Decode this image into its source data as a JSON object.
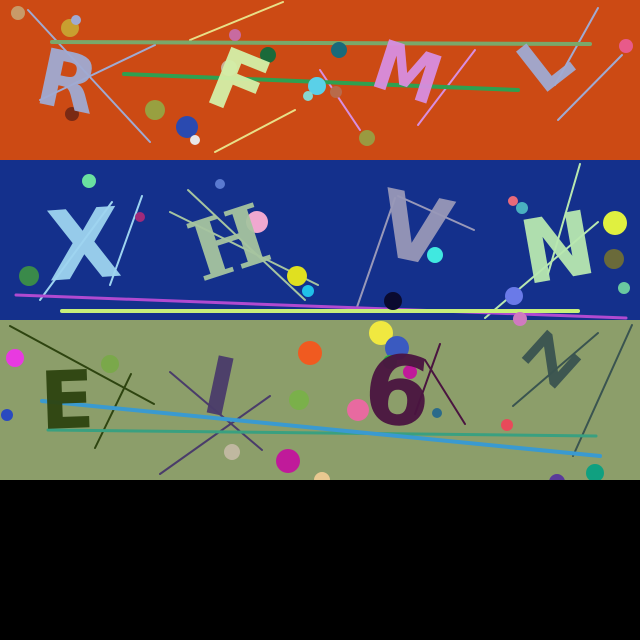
{
  "bands": [
    {
      "name": "top-band",
      "color": "#cc4a14"
    },
    {
      "name": "middle-band",
      "color": "#14308c"
    },
    {
      "name": "bottom-band",
      "color": "#8c9e6a"
    }
  ],
  "background": "#000000",
  "captcha_characters": [
    {
      "text": "R",
      "color": "#a0aad2"
    },
    {
      "text": "F",
      "color": "#d4f0a8"
    },
    {
      "text": "M",
      "color": "#d88ee0"
    },
    {
      "text": "L",
      "color": "#a0aad2"
    },
    {
      "text": "X",
      "color": "#9ed4f0"
    },
    {
      "text": "H",
      "color": "#a6c4a0"
    },
    {
      "text": "V",
      "color": "#9898b8"
    },
    {
      "text": "N",
      "color": "#b8e8b0"
    },
    {
      "text": "E",
      "color": "#2e4410"
    },
    {
      "text": "I",
      "color": "#4a3c6a"
    },
    {
      "text": "6",
      "color": "#4a1440"
    },
    {
      "text": "Z",
      "color": "#3a5450"
    }
  ]
}
